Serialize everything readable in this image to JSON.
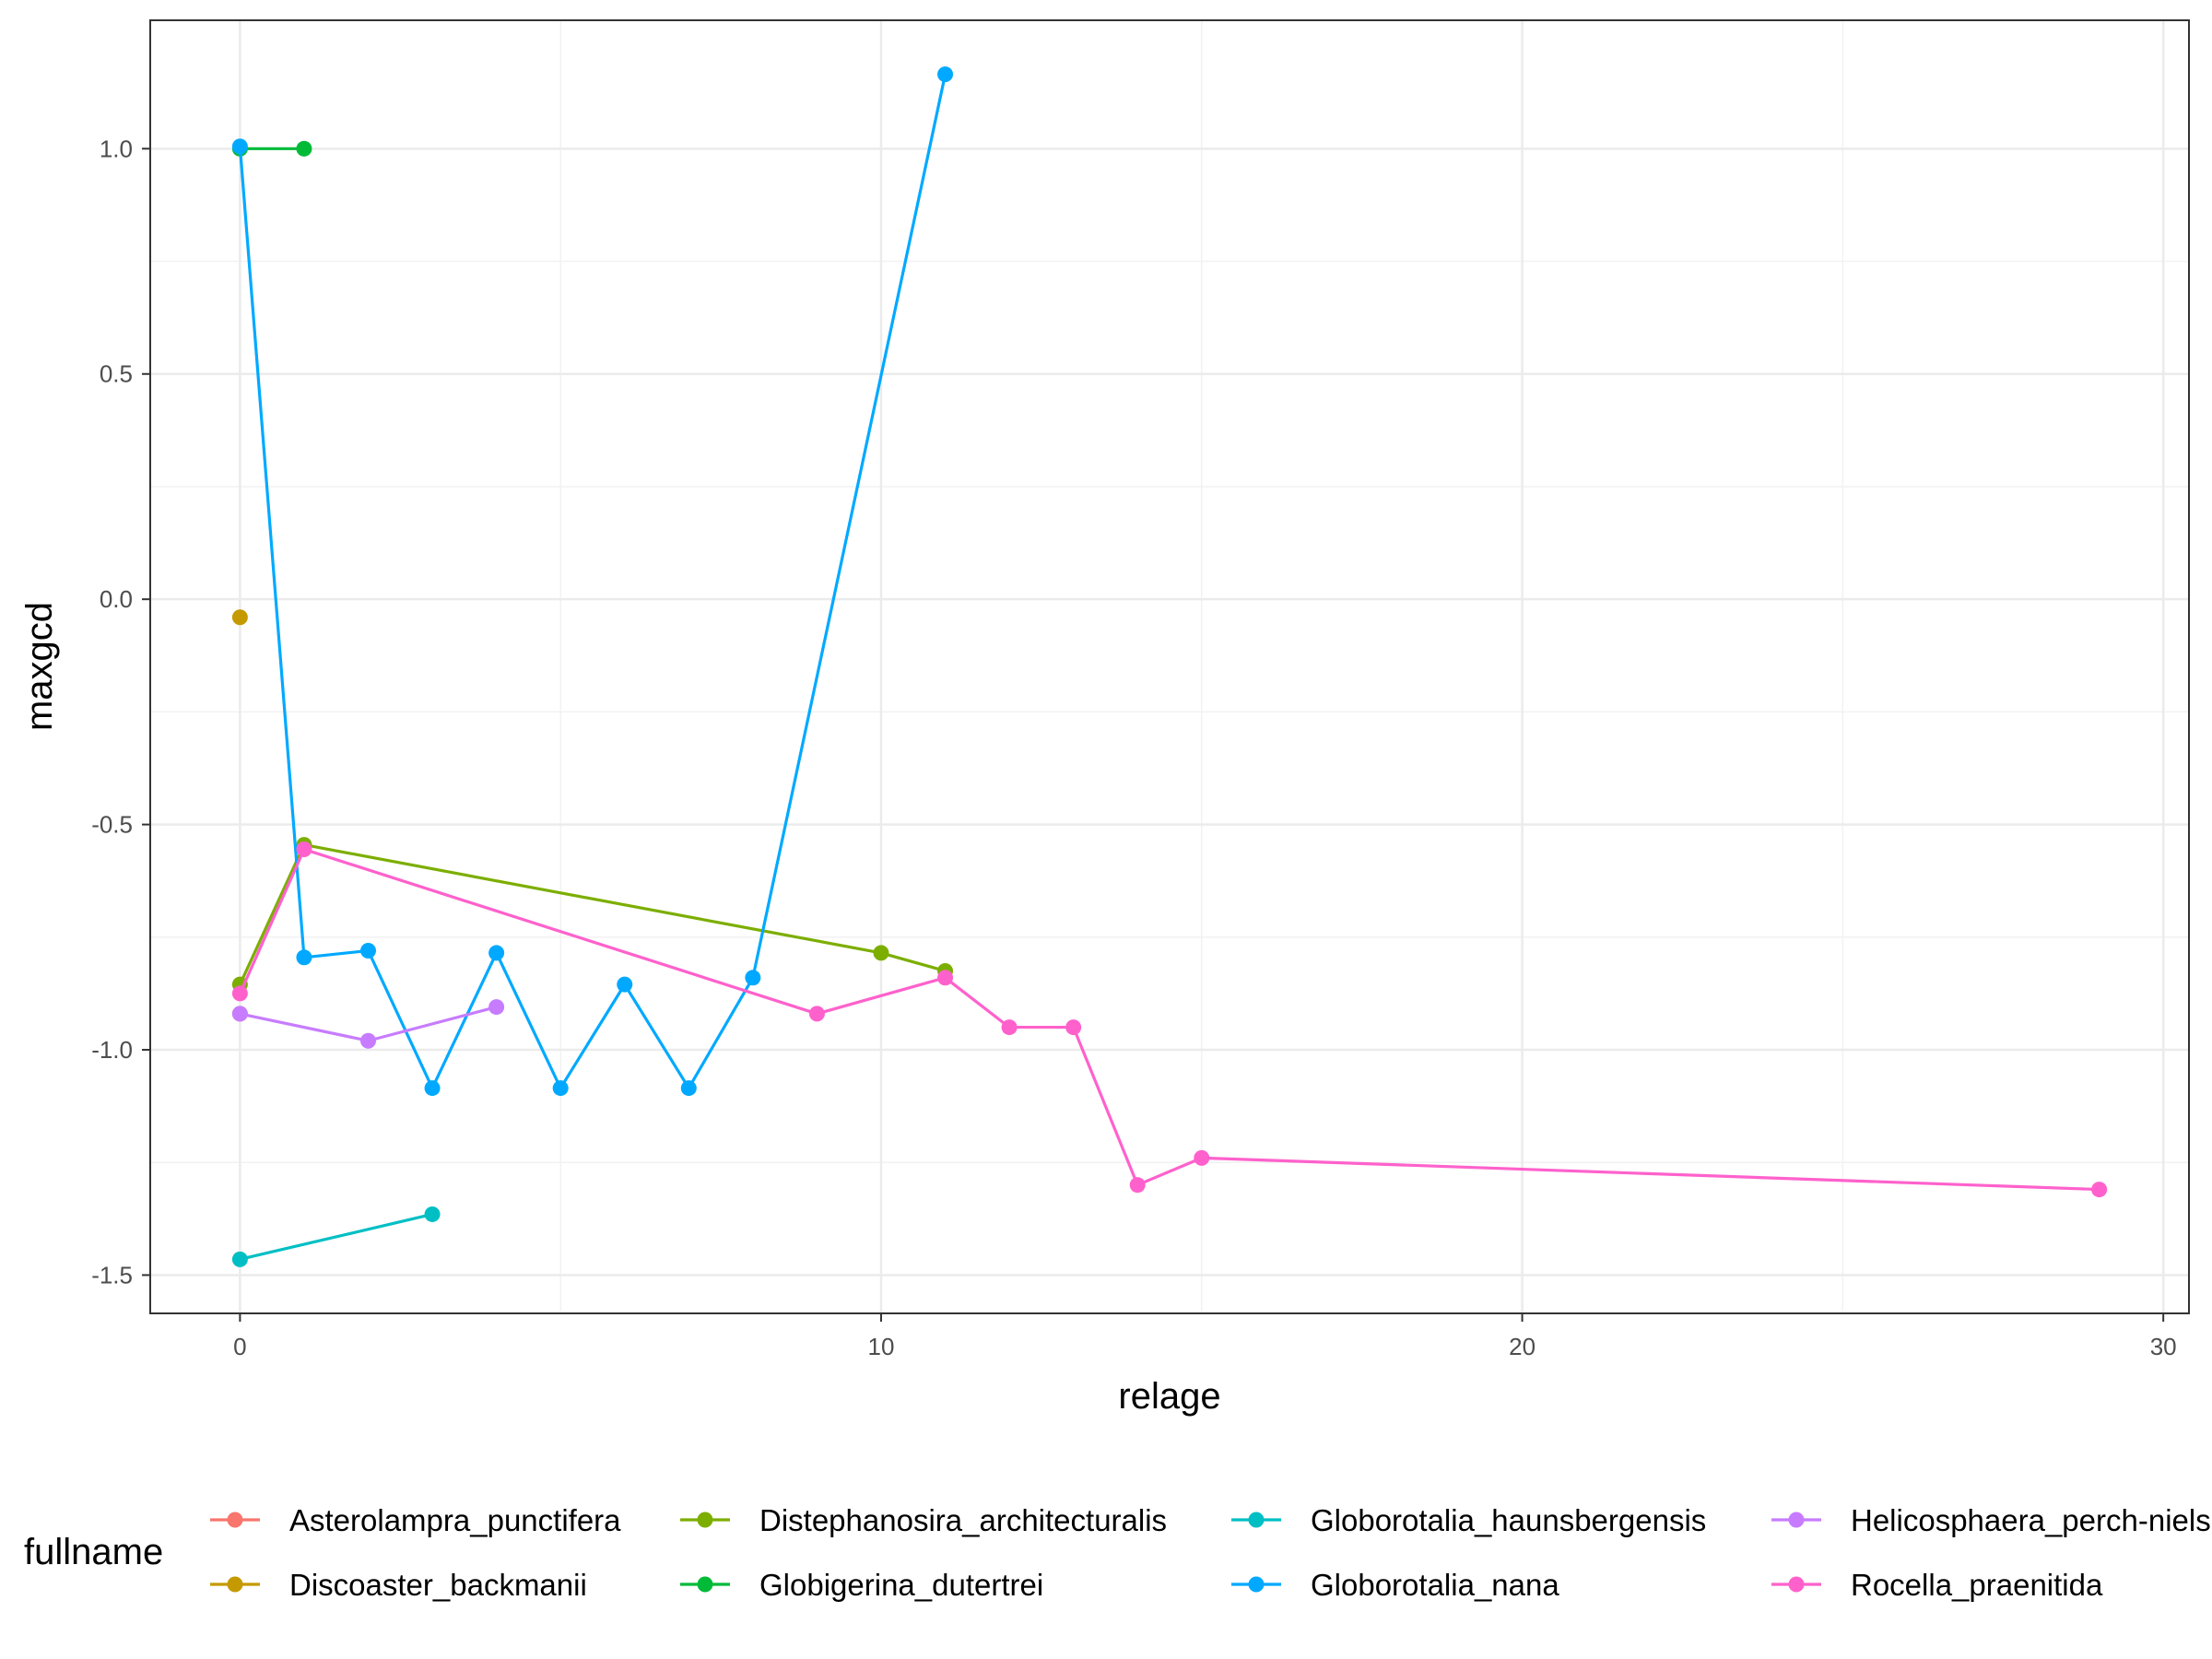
{
  "chart_data": {
    "type": "line",
    "xlabel": "relage",
    "ylabel": "maxgcd",
    "xlim": [
      -1.4,
      30.4
    ],
    "ylim": [
      -1.585,
      1.285
    ],
    "x_ticks": [
      0,
      10,
      20,
      30
    ],
    "y_ticks": [
      -1.5,
      -1.0,
      -0.5,
      0.0,
      0.5,
      1.0
    ],
    "x_tick_labels": [
      "0",
      "10",
      "20",
      "30"
    ],
    "y_tick_labels": [
      "-1.5",
      "-1.0",
      "-0.5",
      "0.0",
      "0.5",
      "1.0"
    ],
    "grid": true,
    "legend_title": "fullname",
    "legend_position": "bottom",
    "series": [
      {
        "name": "Asterolampra_punctifera",
        "color": "#F8766D",
        "points": [
          [
            0,
            -0.92
          ]
        ]
      },
      {
        "name": "Discoaster_backmanii",
        "color": "#C49A00",
        "points": [
          [
            0,
            -0.04
          ]
        ]
      },
      {
        "name": "Distephanosira_architecturalis",
        "color": "#7CAE00",
        "points": [
          [
            0,
            -0.855
          ],
          [
            1,
            -0.545
          ],
          [
            10,
            -0.785
          ],
          [
            11,
            -0.825
          ]
        ]
      },
      {
        "name": "Globigerina_dutertrei",
        "color": "#00BA38",
        "points": [
          [
            0,
            1.0
          ],
          [
            1,
            1.0
          ]
        ]
      },
      {
        "name": "Globorotalia_haunsbergensis",
        "color": "#00BFC4",
        "points": [
          [
            0,
            -1.465
          ],
          [
            3,
            -1.365
          ]
        ]
      },
      {
        "name": "Globorotalia_nana",
        "color": "#00A9FF",
        "points": [
          [
            0,
            1.005
          ],
          [
            1,
            -0.795
          ],
          [
            2,
            -0.78
          ],
          [
            3,
            -1.085
          ],
          [
            4,
            -0.785
          ],
          [
            5,
            -1.085
          ],
          [
            6,
            -0.855
          ],
          [
            7,
            -1.085
          ],
          [
            8,
            -0.84
          ],
          [
            11,
            1.165
          ]
        ]
      },
      {
        "name": "Helicosphaera_perch-nielseniae",
        "color": "#C77CFF",
        "points": [
          [
            0,
            -0.92
          ],
          [
            2,
            -0.98
          ],
          [
            4,
            -0.905
          ]
        ]
      },
      {
        "name": "Rocella_praenitida",
        "color": "#FF61CC",
        "points": [
          [
            0,
            -0.875
          ],
          [
            1,
            -0.555
          ],
          [
            9,
            -0.92
          ],
          [
            11,
            -0.84
          ],
          [
            12,
            -0.95
          ],
          [
            13,
            -0.95
          ],
          [
            14,
            -1.3
          ],
          [
            15,
            -1.24
          ],
          [
            29,
            -1.31
          ]
        ]
      }
    ]
  }
}
